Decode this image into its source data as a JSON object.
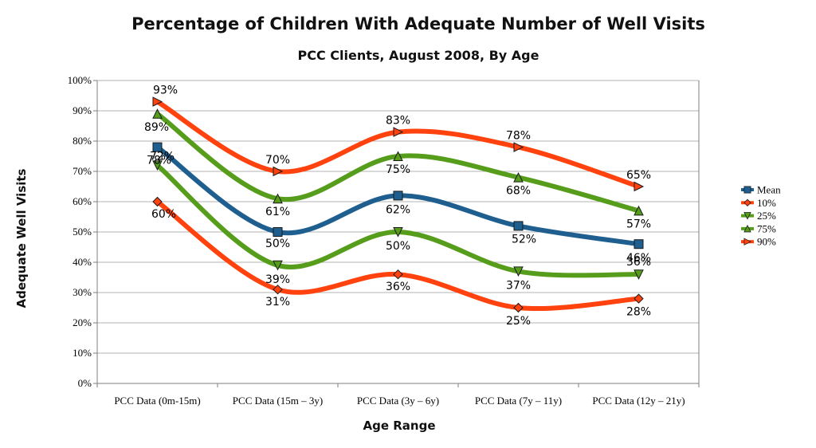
{
  "chart_data": {
    "type": "line",
    "title": "Percentage of Children With Adequate Number of Well Visits",
    "subtitle": "PCC Clients, August 2008, By Age",
    "xlabel": "Age Range",
    "ylabel": "Adequate Well Visits",
    "categories": [
      "PCC Data (0m-15m)",
      "PCC Data (15m – 3y)",
      "PCC Data (3y – 6y)",
      "PCC Data (7y – 11y)",
      "PCC Data (12y – 21y)"
    ],
    "ylim": [
      0,
      100
    ],
    "yticks": [
      "0%",
      "10%",
      "20%",
      "30%",
      "40%",
      "50%",
      "60%",
      "70%",
      "80%",
      "90%",
      "100%"
    ],
    "grid": true,
    "legend_position": "right",
    "series": [
      {
        "name": "Mean",
        "values": [
          78,
          50,
          62,
          52,
          46
        ],
        "labels": [
          "78%",
          "50%",
          "62%",
          "52%",
          "46%"
        ],
        "color": "#1f5f8f",
        "marker": "square"
      },
      {
        "name": "10%",
        "values": [
          60,
          31,
          36,
          25,
          28
        ],
        "labels": [
          "60%",
          "31%",
          "36%",
          "25%",
          "28%"
        ],
        "color": "#ff420e",
        "marker": "diamond"
      },
      {
        "name": "25%",
        "values": [
          72,
          39,
          50,
          37,
          36
        ],
        "labels": [
          "72%",
          "39%",
          "50%",
          "37%",
          "36%"
        ],
        "color": "#579d1c",
        "marker": "triangle-down"
      },
      {
        "name": "75%",
        "values": [
          89,
          61,
          75,
          68,
          57
        ],
        "labels": [
          "89%",
          "61%",
          "75%",
          "68%",
          "57%"
        ],
        "color": "#579d1c",
        "marker": "triangle-up"
      },
      {
        "name": "90%",
        "values": [
          93,
          70,
          83,
          78,
          65
        ],
        "labels": [
          "93%",
          "70%",
          "83%",
          "78%",
          "65%"
        ],
        "color": "#ff420e",
        "marker": "triangle-right"
      }
    ]
  }
}
